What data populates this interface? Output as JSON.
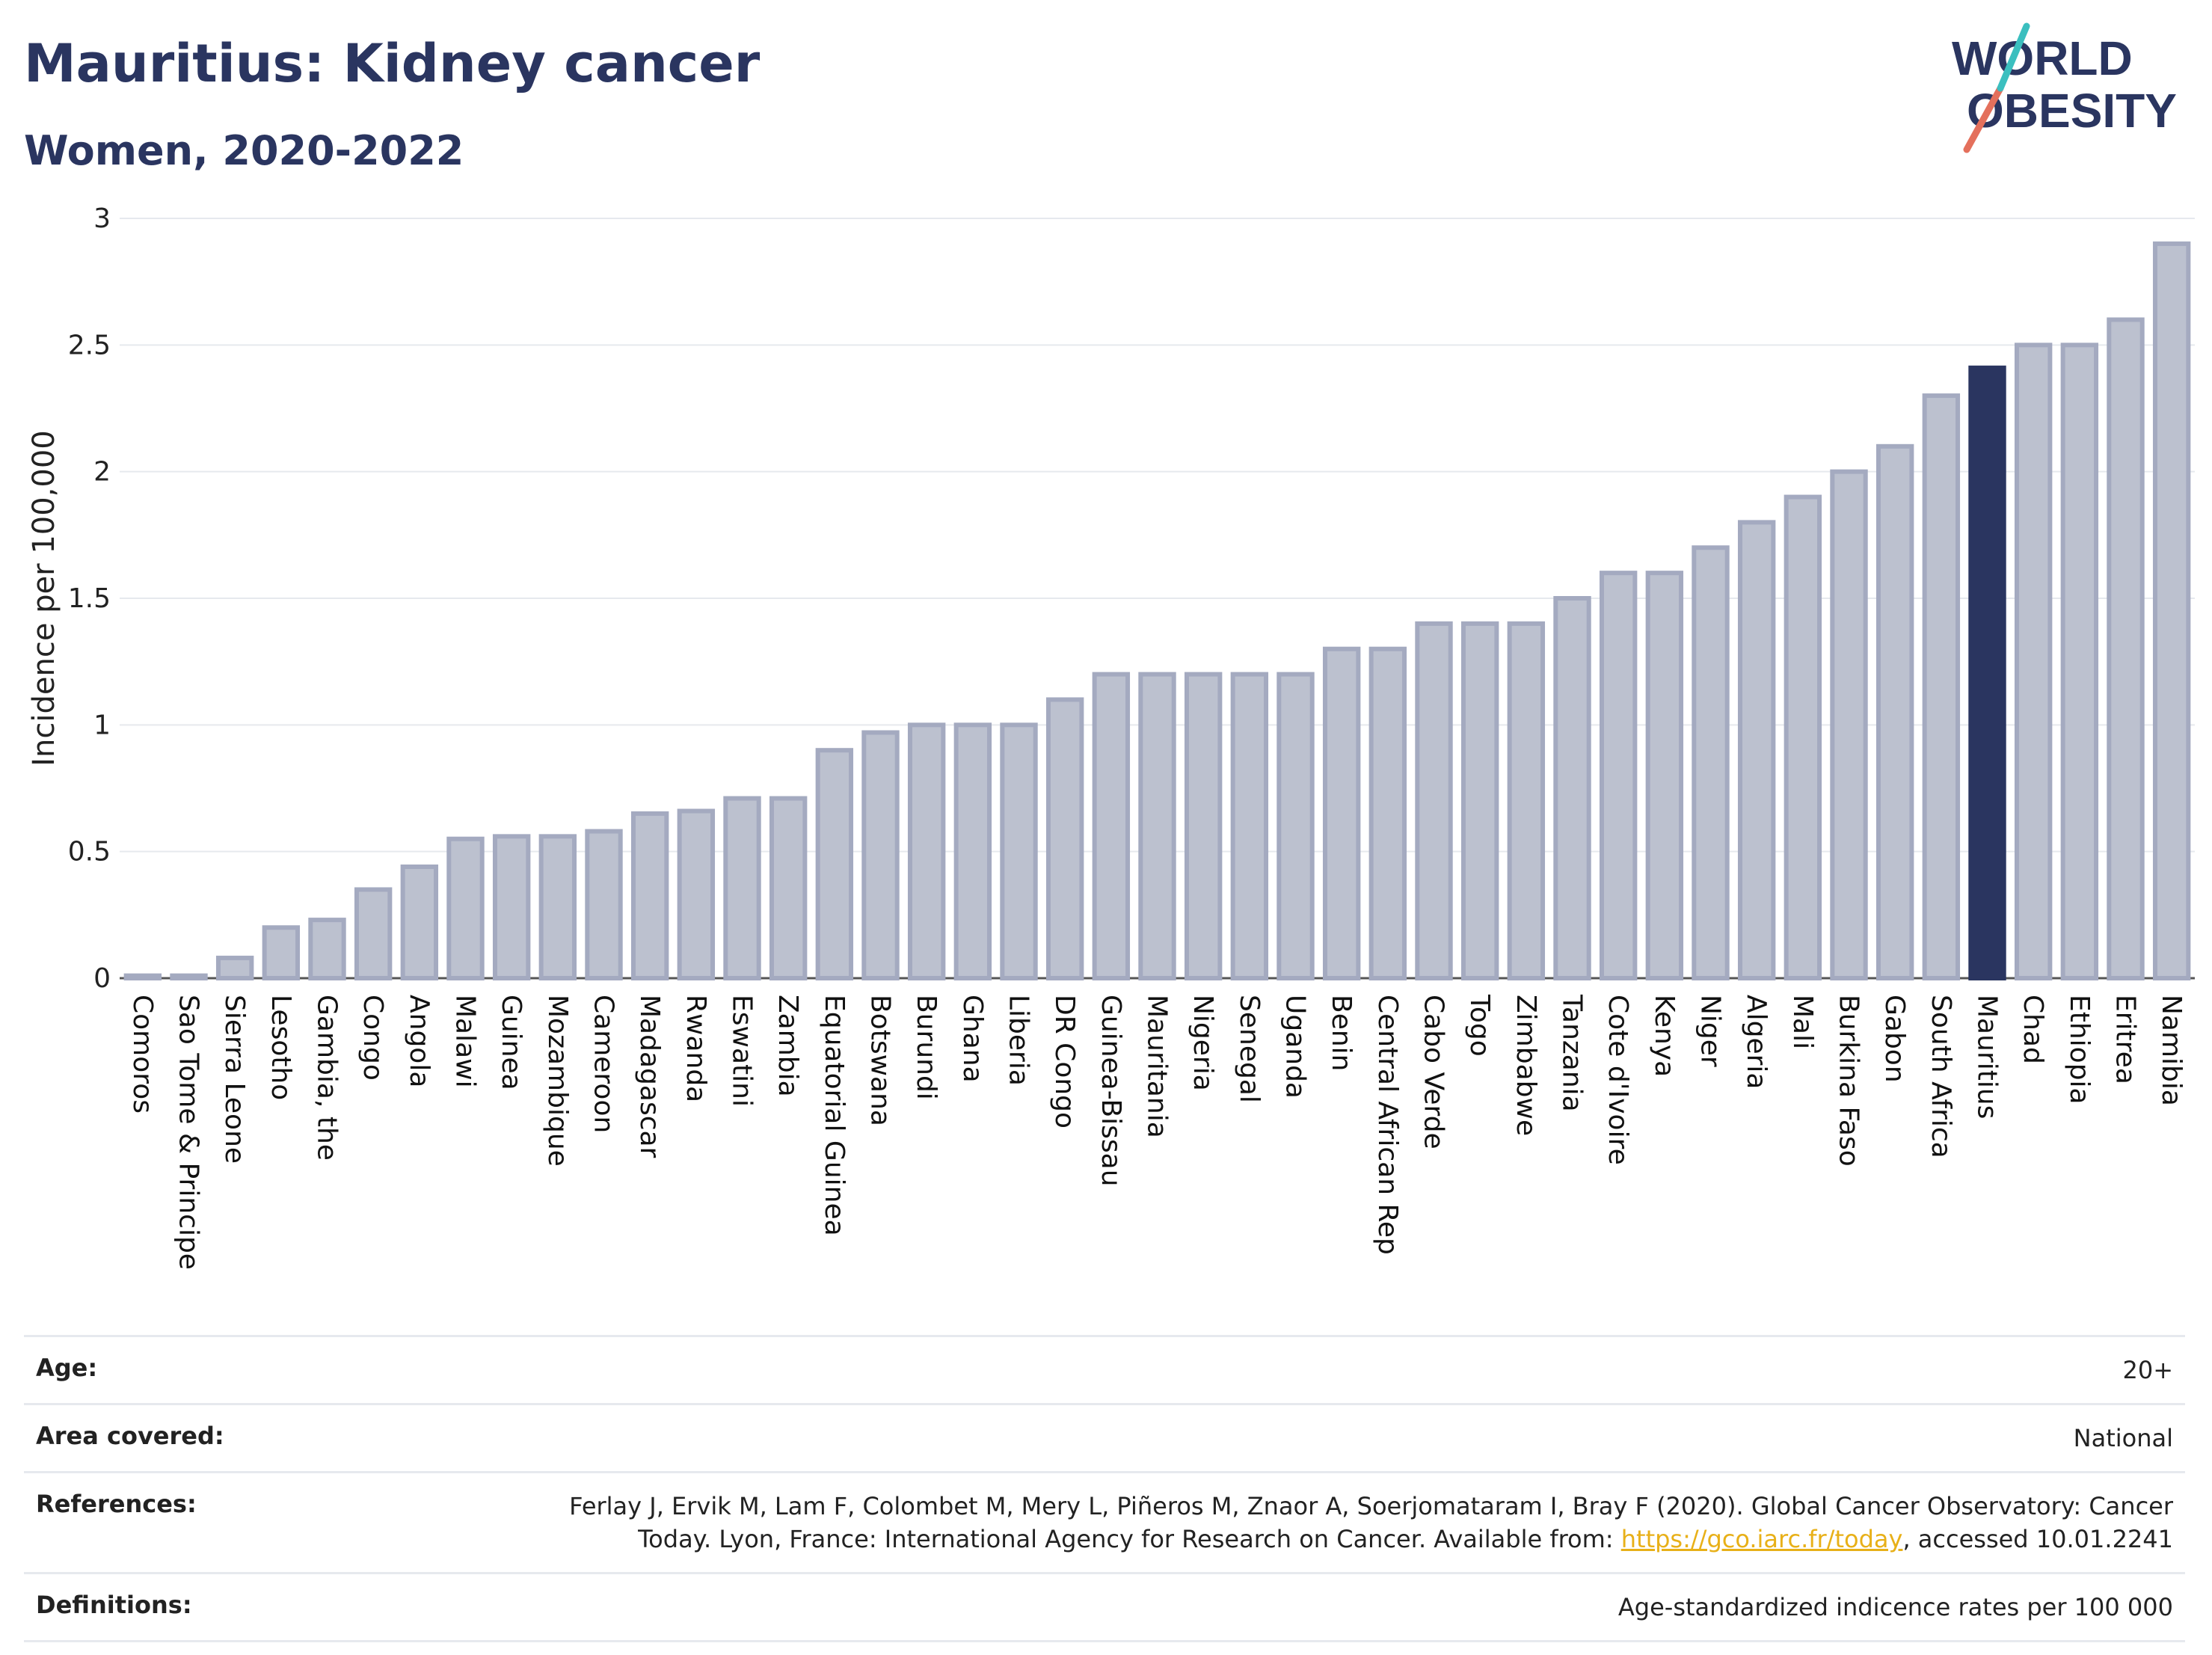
{
  "header": {
    "title": "Mauritius: Kidney cancer",
    "subtitle": "Women, 2020-2022"
  },
  "logo": {
    "line1": "WORLD",
    "line2": "OBESITY"
  },
  "colors": {
    "bar": "#bcc1cf",
    "bar_stroke": "#a4aac0",
    "highlight": "#2a3560",
    "grid": "#e6e9ee"
  },
  "chart_data": {
    "type": "bar",
    "ylabel": "Incidence per 100,000",
    "ylim": [
      0,
      3
    ],
    "yticks": [
      0,
      0.5,
      1,
      1.5,
      2,
      2.5,
      3
    ],
    "grid": true,
    "highlight": "Mauritius",
    "categories": [
      "Comoros",
      "Sao Tome & Principe",
      "Sierra Leone",
      "Lesotho",
      "Gambia, the",
      "Congo",
      "Angola",
      "Malawi",
      "Guinea",
      "Mozambique",
      "Cameroon",
      "Madagascar",
      "Rwanda",
      "Eswatini",
      "Zambia",
      "Equatorial Guinea",
      "Botswana",
      "Burundi",
      "Ghana",
      "Liberia",
      "DR Congo",
      "Guinea-Bissau",
      "Mauritania",
      "Nigeria",
      "Senegal",
      "Uganda",
      "Benin",
      "Central African Rep",
      "Cabo Verde",
      "Togo",
      "Zimbabwe",
      "Tanzania",
      "Cote d'Ivoire",
      "Kenya",
      "Niger",
      "Algeria",
      "Mali",
      "Burkina Faso",
      "Gabon",
      "South Africa",
      "Mauritius",
      "Chad",
      "Ethiopia",
      "Eritrea",
      "Namibia"
    ],
    "values": [
      0.01,
      0.01,
      0.08,
      0.2,
      0.23,
      0.35,
      0.44,
      0.55,
      0.56,
      0.56,
      0.58,
      0.65,
      0.66,
      0.71,
      0.71,
      0.9,
      0.97,
      1.0,
      1.0,
      1.0,
      1.1,
      1.2,
      1.2,
      1.2,
      1.2,
      1.2,
      1.3,
      1.3,
      1.4,
      1.4,
      1.4,
      1.5,
      1.6,
      1.6,
      1.7,
      1.8,
      1.9,
      2.0,
      2.1,
      2.3,
      2.41,
      2.5,
      2.5,
      2.6,
      2.9
    ]
  },
  "info": {
    "age_label": "Age:",
    "age_value": "20+",
    "area_label": "Area covered:",
    "area_value": "National",
    "ref_label": "References:",
    "ref_text": "Ferlay J, Ervik M, Lam F, Colombet M, Mery L, Piñeros M, Znaor A, Soerjomataram I, Bray F (2020). Global Cancer Observatory: Cancer Today. Lyon, France: International Agency for Research on Cancer. Available from: ",
    "ref_link": "https://gco.iarc.fr/today",
    "ref_suffix": ", accessed 10.01.2241",
    "def_label": "Definitions:",
    "def_value": "Age-standardized indicence rates per 100 000"
  }
}
